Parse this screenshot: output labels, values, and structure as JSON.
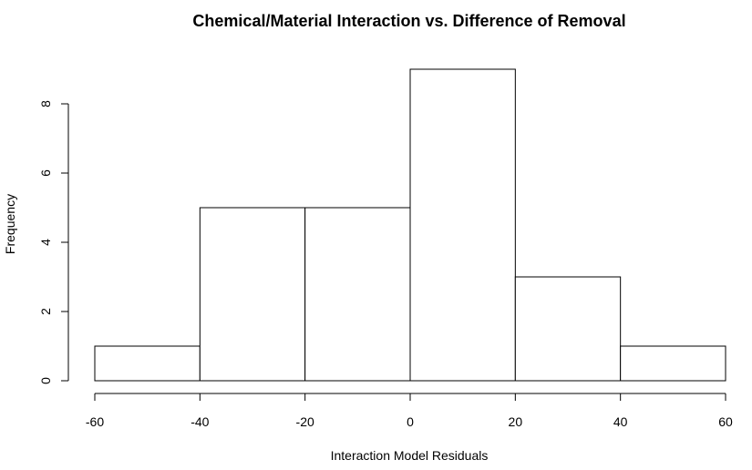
{
  "chart_data": {
    "type": "bar",
    "title": "Chemical/Material Interaction vs. Difference of Removal",
    "xlabel": "Interaction Model Residuals",
    "ylabel": "Frequency",
    "bins": [
      {
        "from": -60,
        "to": -40,
        "count": 1
      },
      {
        "from": -40,
        "to": -20,
        "count": 5
      },
      {
        "from": -20,
        "to": 0,
        "count": 5
      },
      {
        "from": 0,
        "to": 20,
        "count": 9
      },
      {
        "from": 20,
        "to": 40,
        "count": 3
      },
      {
        "from": 40,
        "to": 60,
        "count": 1
      }
    ],
    "xticks": [
      -60,
      -40,
      -20,
      0,
      20,
      40,
      60
    ],
    "yticks": [
      0,
      2,
      4,
      6,
      8
    ],
    "xlim": [
      -60,
      60
    ],
    "ylim": [
      0,
      9
    ],
    "grid": false,
    "legend": "none",
    "bar_fill": "#ffffff",
    "bar_stroke": "#000000"
  }
}
